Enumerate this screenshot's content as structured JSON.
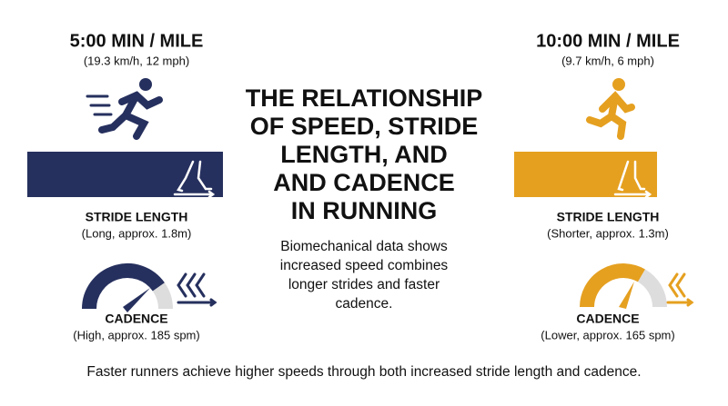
{
  "title": [
    "THE RELATIONSHIP",
    "OF SPEED, STRIDE",
    "LENGTH, AND",
    "AND CADENCE",
    "IN RUNNING"
  ],
  "description": [
    "Biomechanical data shows",
    "increased speed combines",
    "longer strides and faster",
    "cadence."
  ],
  "left": {
    "pace": "5:00 MIN / MILE",
    "speed": "(19.3 km/h, 12 mph)",
    "stride_title": "STRIDE LENGTH",
    "stride_note": "(Long, approx. 1.8m)",
    "cadence_title": "CADENCE",
    "cadence_note": "(High, approx. 185 spm)"
  },
  "right": {
    "pace": "10:00 MIN / MILE",
    "speed": "(9.7 km/h, 6 mph)",
    "stride_title": "STRIDE LENGTH",
    "stride_note": "(Shorter, approx. 1.3m)",
    "cadence_title": "CADENCE",
    "cadence_note": "(Lower, approx. 165 spm)"
  },
  "footer": "Faster runners achieve higher speeds through both increased stride length and cadence."
}
